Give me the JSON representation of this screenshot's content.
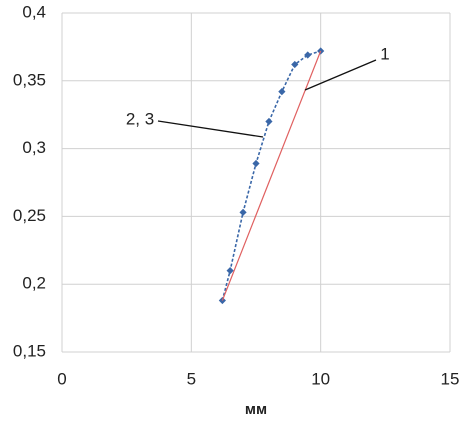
{
  "chart_data": {
    "type": "line",
    "x_label": "мм",
    "xlim": [
      0,
      15
    ],
    "xticks": [
      0,
      5,
      10,
      15
    ],
    "ylim": [
      0.15,
      0.4
    ],
    "yticks": [
      {
        "value": 0.15,
        "label": "0,15"
      },
      {
        "value": 0.2,
        "label": "0,2"
      },
      {
        "value": 0.25,
        "label": "0,25"
      },
      {
        "value": 0.3,
        "label": "0,3"
      },
      {
        "value": 0.35,
        "label": "0,35"
      },
      {
        "value": 0.4,
        "label": "0,4"
      }
    ],
    "grid": true,
    "series": [
      {
        "name": "2, 3",
        "color": "#3a67a8",
        "markers": true,
        "dashed": true,
        "x": [
          6.2,
          6.5,
          7,
          7.5,
          8,
          8.5,
          9,
          9.5,
          10
        ],
        "values": [
          0.188,
          0.21,
          0.253,
          0.289,
          0.32,
          0.342,
          0.362,
          0.369,
          0.372
        ]
      },
      {
        "name": "1",
        "color": "#e06060",
        "markers": false,
        "dashed": false,
        "x": [
          6.2,
          10
        ],
        "values": [
          0.188,
          0.372
        ]
      }
    ]
  }
}
